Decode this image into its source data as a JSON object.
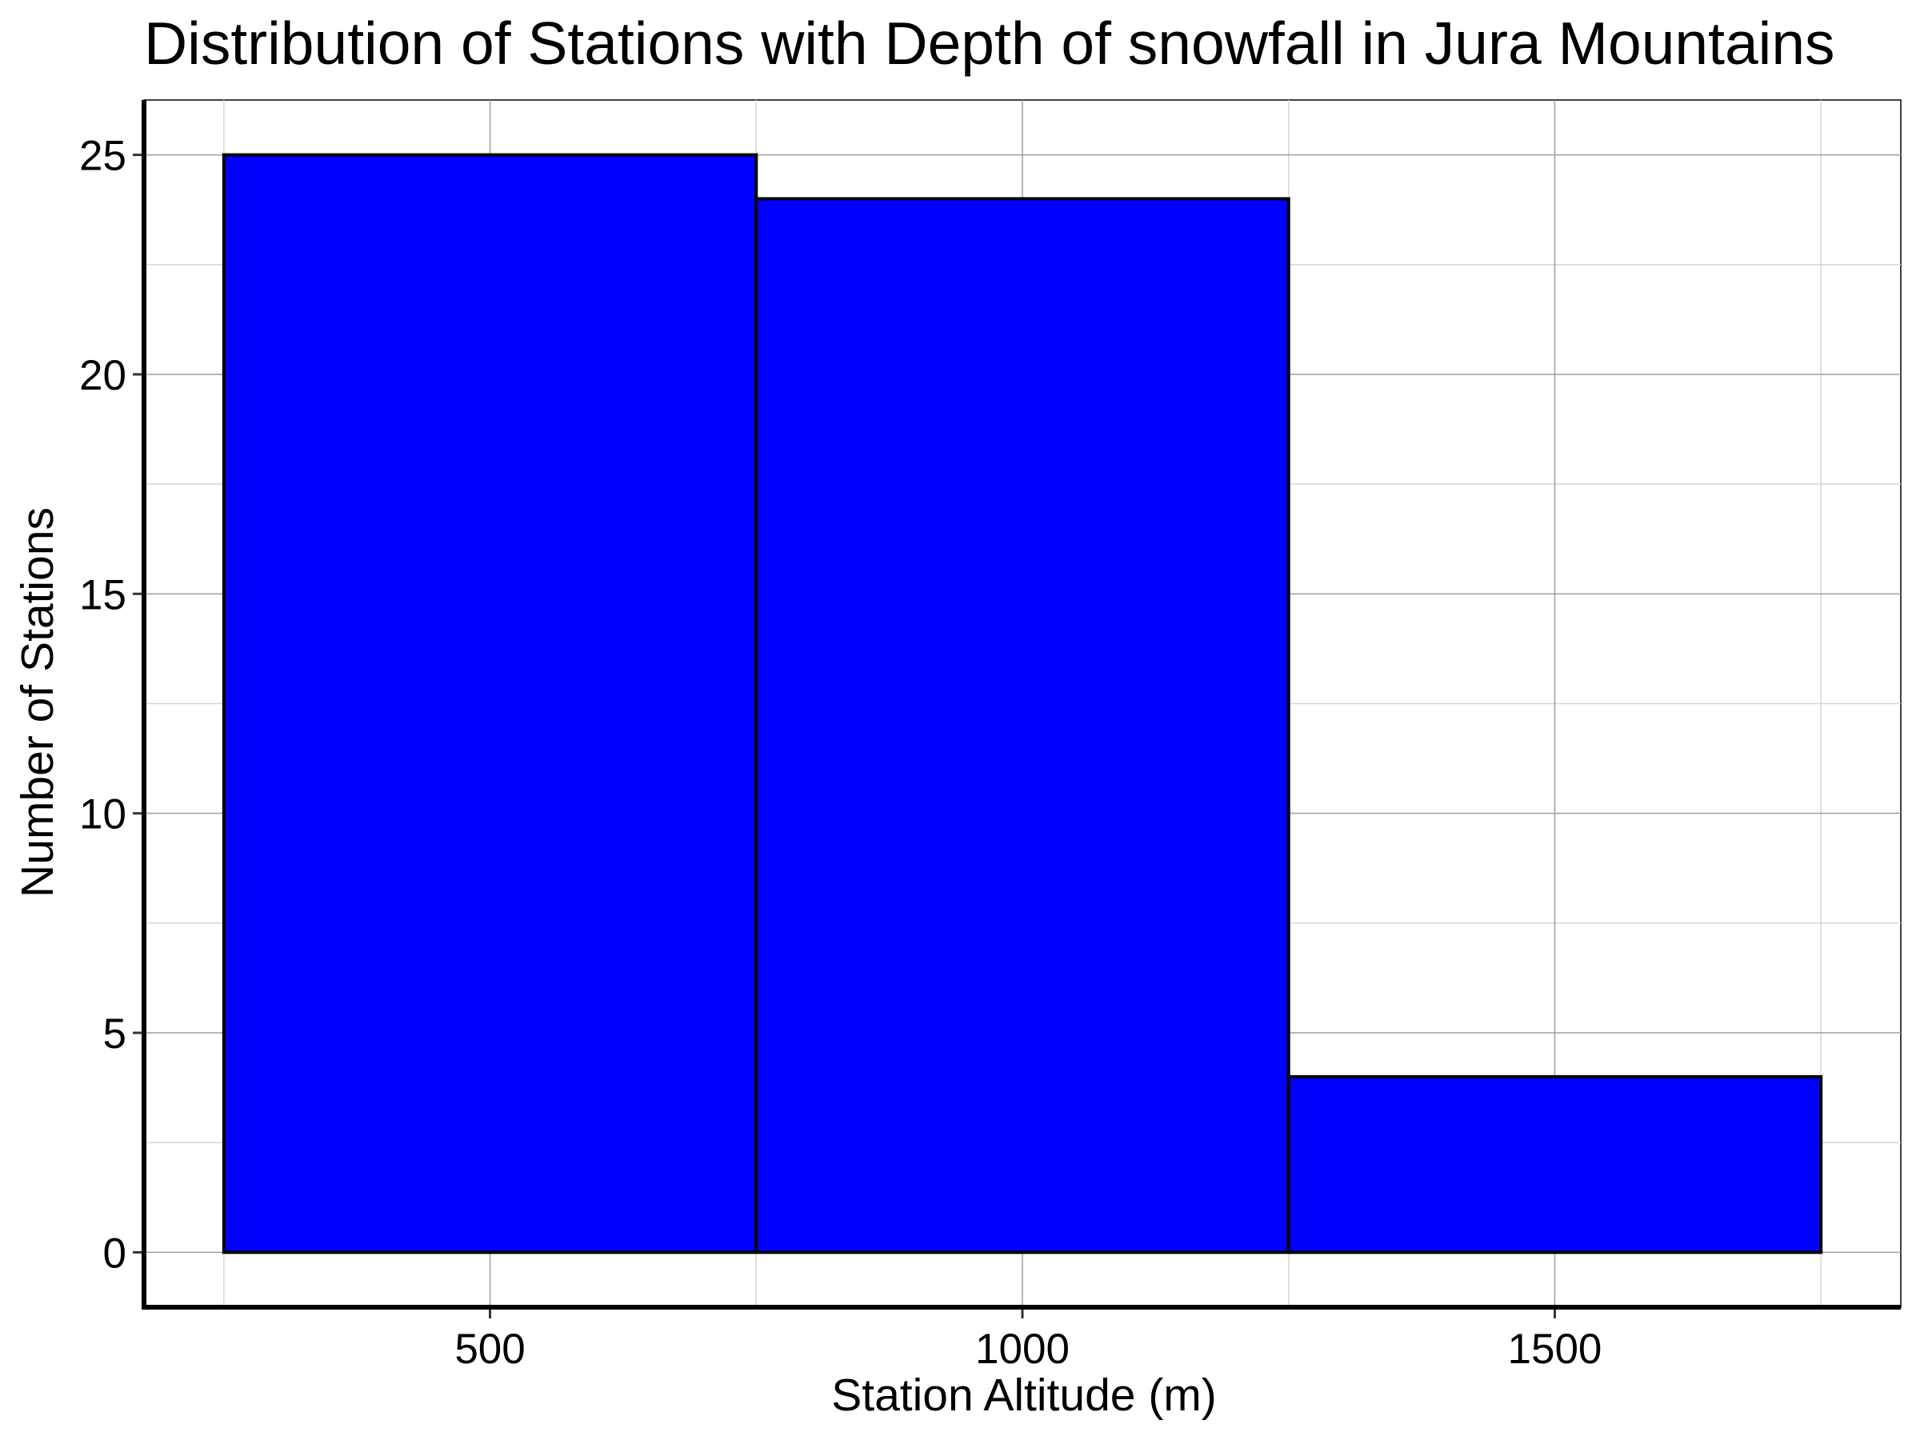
{
  "chart_data": {
    "type": "bar",
    "title": "Distribution of Stations with Depth of snowfall in Jura Mountains",
    "xlabel": "Station Altitude (m)",
    "ylabel": "Number of Stations",
    "bins": [
      {
        "start": 250,
        "end": 750,
        "count": 25
      },
      {
        "start": 750,
        "end": 1250,
        "count": 24
      },
      {
        "start": 1250,
        "end": 1750,
        "count": 4
      }
    ],
    "x_ticks": [
      500,
      1000,
      1500
    ],
    "y_ticks": [
      0,
      5,
      10,
      15,
      20,
      25
    ],
    "xlim": [
      175,
      1825
    ],
    "ylim": [
      -1.25,
      26.25
    ],
    "grid": true,
    "colors": {
      "bar_fill": "#0000ff",
      "bar_edge": "#000000",
      "grid_major": "#9e9e9e",
      "grid_minor": "#d6d6d6"
    }
  }
}
